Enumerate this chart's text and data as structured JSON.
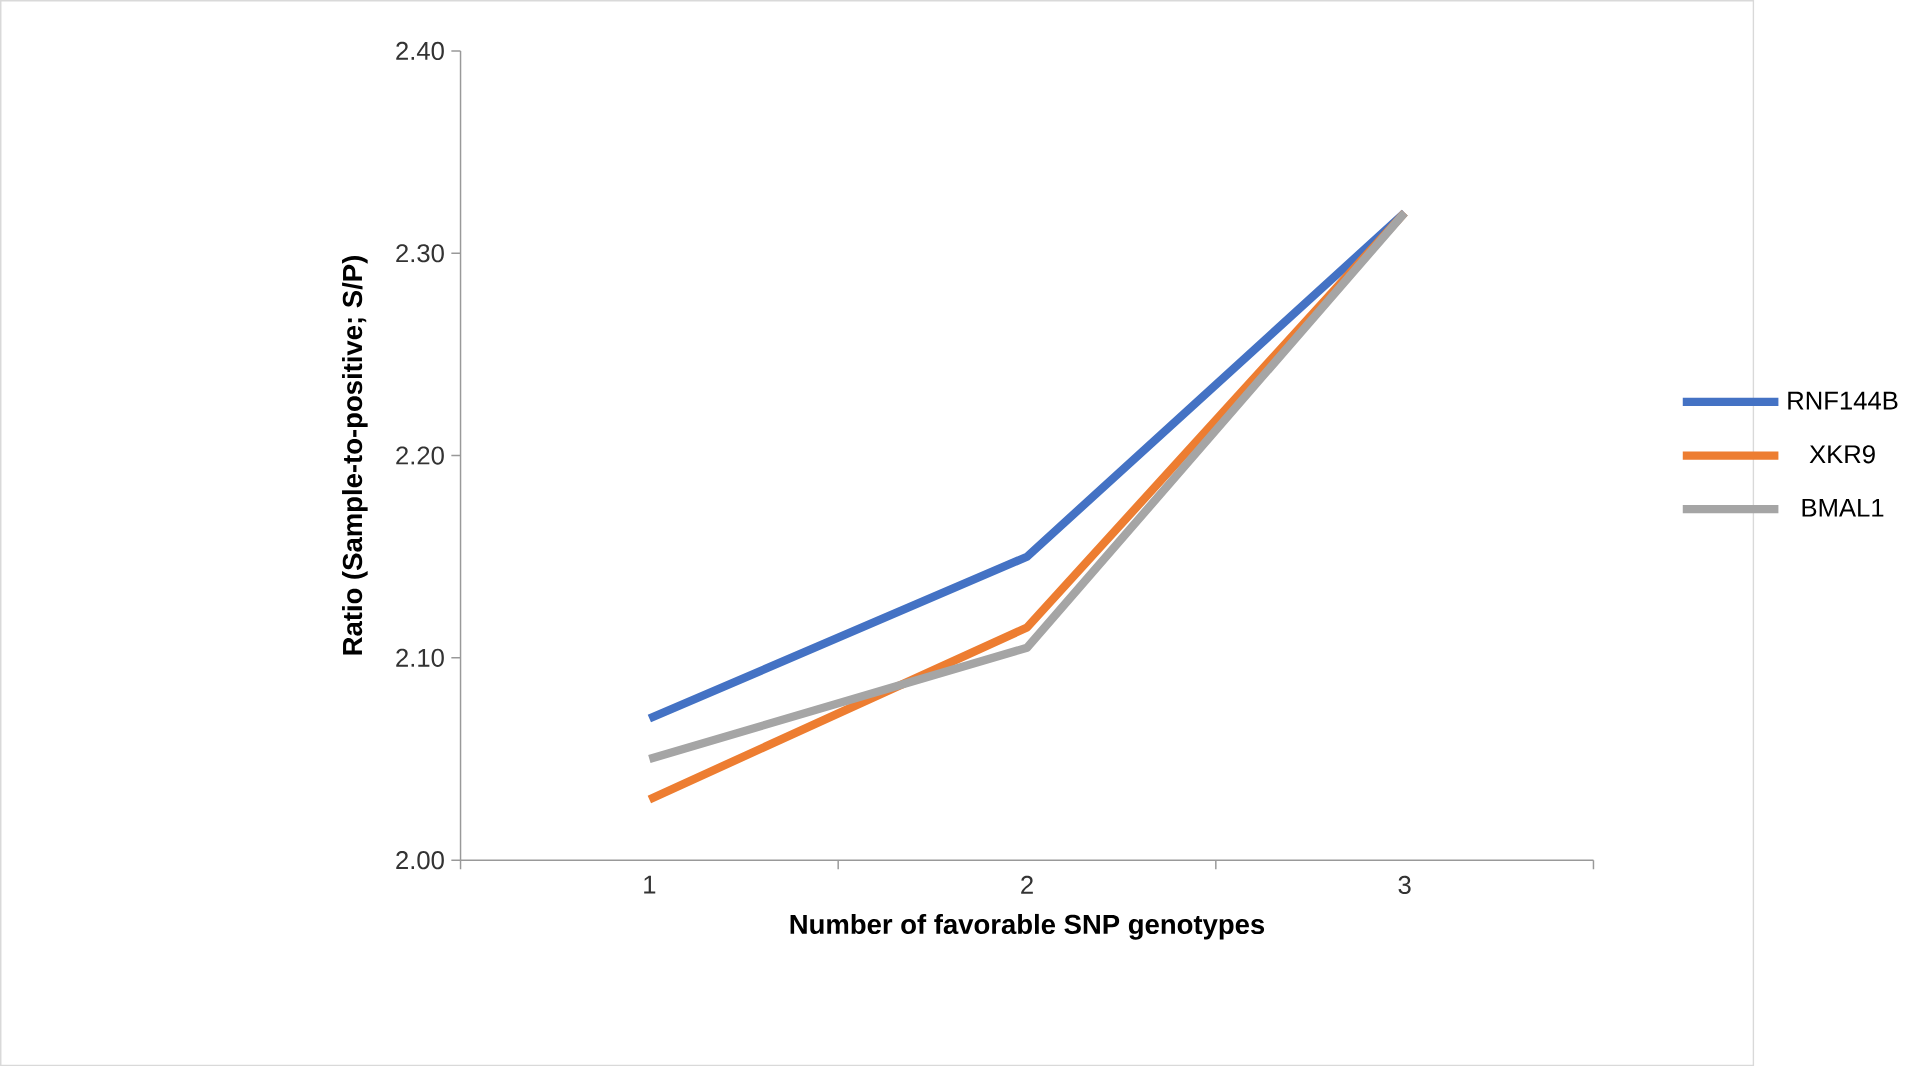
{
  "chart_data": {
    "type": "line",
    "xlabel": "Number of favorable SNP genotypes",
    "ylabel": "Ratio (Sample-to-positive; S/P)",
    "categories": [
      "1",
      "2",
      "3"
    ],
    "series": [
      {
        "name": "RNF144B",
        "color": "#4472c4",
        "values": [
          2.07,
          2.15,
          2.32
        ]
      },
      {
        "name": "XKR9",
        "color": "#ed7d31",
        "values": [
          2.03,
          2.115,
          2.32
        ]
      },
      {
        "name": "BMAL1",
        "color": "#a5a5a5",
        "values": [
          2.05,
          2.105,
          2.32
        ]
      }
    ],
    "ylim": [
      2.0,
      2.4
    ],
    "yticks": [
      {
        "value": 2.0,
        "label": "2.00"
      },
      {
        "value": 2.1,
        "label": "2.10"
      },
      {
        "value": 2.2,
        "label": "2.20"
      },
      {
        "value": 2.3,
        "label": "2.30"
      },
      {
        "value": 2.4,
        "label": "2.40"
      }
    ],
    "grid": false,
    "legend": "right",
    "line_style": "solid"
  }
}
